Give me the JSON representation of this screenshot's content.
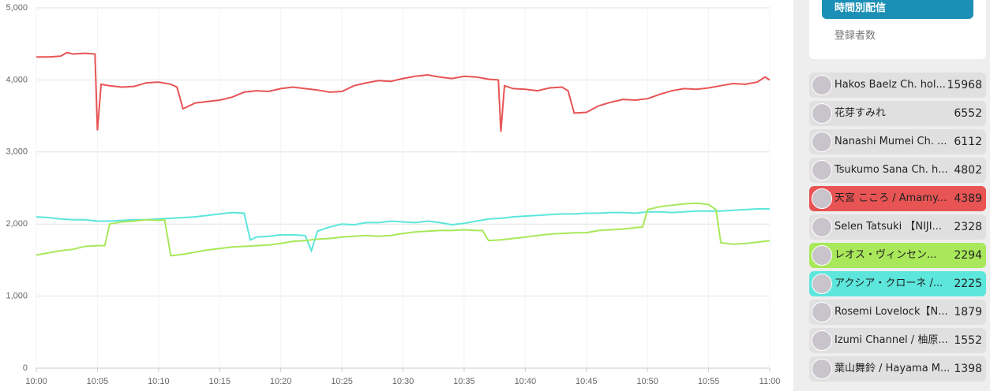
{
  "chart_data": {
    "type": "line",
    "xlim": [
      0,
      60
    ],
    "xticks": [
      {
        "value": 0,
        "label": "10:00"
      },
      {
        "value": 5,
        "label": "10:05"
      },
      {
        "value": 10,
        "label": "10:10"
      },
      {
        "value": 15,
        "label": "10:15"
      },
      {
        "value": 20,
        "label": "10:20"
      },
      {
        "value": 25,
        "label": "10:25"
      },
      {
        "value": 30,
        "label": "10:30"
      },
      {
        "value": 35,
        "label": "10:35"
      },
      {
        "value": 40,
        "label": "10:40"
      },
      {
        "value": 45,
        "label": "10:45"
      },
      {
        "value": 50,
        "label": "10:50"
      },
      {
        "value": 55,
        "label": "10:55"
      },
      {
        "value": 60,
        "label": "11:00"
      }
    ],
    "ylim": [
      0,
      5000
    ],
    "yticks": [
      0,
      {
        "value": 1000,
        "label": "1,000"
      },
      {
        "value": 2000,
        "label": "2,000"
      },
      {
        "value": 3000,
        "label": "3,000"
      },
      {
        "value": 4000,
        "label": "4,000"
      },
      {
        "value": 5000,
        "label": "5,000"
      }
    ],
    "grid": true,
    "series": [
      {
        "color": "#e85454",
        "x": [
          0,
          1,
          2,
          2.5,
          3,
          4,
          4.8,
          5,
          5.3,
          6,
          7,
          8,
          9,
          10,
          11,
          11.5,
          12,
          13,
          14,
          15,
          16,
          17,
          18,
          19,
          20,
          21,
          22,
          23,
          24,
          25,
          26,
          27,
          28,
          29,
          30,
          31,
          32,
          33,
          34,
          35,
          36,
          37,
          37.8,
          38,
          38.3,
          39,
          40,
          41,
          42,
          43,
          43.5,
          44,
          45,
          46,
          47,
          48,
          49,
          50,
          51,
          52,
          53,
          54,
          55,
          56,
          57,
          58,
          59,
          59.6,
          60
        ],
        "values": [
          4320,
          4320,
          4330,
          4380,
          4360,
          4370,
          4360,
          3300,
          3940,
          3920,
          3900,
          3910,
          3960,
          3970,
          3940,
          3900,
          3600,
          3680,
          3700,
          3720,
          3760,
          3830,
          3850,
          3840,
          3880,
          3900,
          3880,
          3860,
          3830,
          3840,
          3920,
          3960,
          3990,
          3980,
          4020,
          4050,
          4070,
          4040,
          4020,
          4050,
          4040,
          4010,
          4000,
          3280,
          3920,
          3880,
          3870,
          3850,
          3890,
          3900,
          3850,
          3540,
          3550,
          3640,
          3690,
          3730,
          3720,
          3740,
          3800,
          3850,
          3880,
          3870,
          3890,
          3920,
          3950,
          3940,
          3970,
          4040,
          4000
        ]
      },
      {
        "color": "#5ce6dc",
        "x": [
          0,
          1,
          2,
          3,
          4,
          5,
          6,
          7,
          8,
          9,
          10,
          11,
          12,
          13,
          14,
          15,
          16,
          17,
          17.5,
          18,
          19,
          20,
          21,
          22,
          22.5,
          23,
          24,
          25,
          26,
          27,
          28,
          29,
          30,
          31,
          32,
          33,
          34,
          35,
          36,
          37,
          38,
          39,
          40,
          41,
          42,
          43,
          44,
          45,
          46,
          47,
          48,
          49,
          50,
          51,
          52,
          53,
          54,
          55,
          56,
          57,
          58,
          59,
          60
        ],
        "values": [
          2100,
          2090,
          2070,
          2060,
          2060,
          2040,
          2040,
          2050,
          2060,
          2060,
          2070,
          2080,
          2090,
          2100,
          2120,
          2140,
          2160,
          2150,
          1780,
          1820,
          1830,
          1850,
          1850,
          1840,
          1630,
          1900,
          1960,
          2000,
          1990,
          2020,
          2020,
          2040,
          2030,
          2020,
          2040,
          2020,
          1990,
          2010,
          2040,
          2070,
          2080,
          2100,
          2110,
          2120,
          2130,
          2140,
          2140,
          2150,
          2150,
          2160,
          2160,
          2150,
          2170,
          2170,
          2160,
          2170,
          2180,
          2180,
          2180,
          2190,
          2200,
          2210,
          2210
        ]
      },
      {
        "color": "#a8e85a",
        "x": [
          0,
          1,
          2,
          3,
          4,
          5,
          5.6,
          6,
          7,
          8,
          9,
          10,
          10.5,
          11,
          12,
          13,
          14,
          15,
          16,
          17,
          18,
          19,
          20,
          21,
          22,
          23,
          24,
          25,
          26,
          27,
          28,
          29,
          30,
          31,
          32,
          33,
          34,
          35,
          36,
          36.5,
          37,
          38,
          39,
          40,
          41,
          42,
          43,
          44,
          45,
          46,
          47,
          48,
          49,
          49.6,
          50,
          51,
          52,
          53,
          54,
          55,
          55.6,
          56,
          57,
          58,
          59,
          60
        ],
        "values": [
          1570,
          1600,
          1630,
          1650,
          1690,
          1700,
          1700,
          2000,
          2030,
          2040,
          2060,
          2050,
          2060,
          1560,
          1580,
          1610,
          1640,
          1660,
          1680,
          1690,
          1700,
          1710,
          1730,
          1760,
          1770,
          1790,
          1800,
          1820,
          1830,
          1840,
          1830,
          1840,
          1870,
          1890,
          1900,
          1910,
          1910,
          1920,
          1910,
          1910,
          1770,
          1780,
          1800,
          1820,
          1840,
          1860,
          1870,
          1880,
          1880,
          1910,
          1920,
          1930,
          1950,
          1960,
          2200,
          2240,
          2260,
          2280,
          2290,
          2270,
          2200,
          1740,
          1720,
          1730,
          1750,
          1770
        ]
      }
    ]
  },
  "menu": {
    "active": "時間別配信",
    "other": "登録者数"
  },
  "ranking": [
    {
      "name": "Hakos Baelz Ch. hol...",
      "count": 15968
    },
    {
      "name": "花芽すみれ",
      "count": 6552
    },
    {
      "name": "Nanashi Mumei Ch. ...",
      "count": 6112
    },
    {
      "name": "Tsukumo Sana Ch. h...",
      "count": 4802
    },
    {
      "name": "天宮 こころ / Amamy...",
      "count": 4389,
      "color": "#e85454"
    },
    {
      "name": "Selen Tatsuki 【NIJI...",
      "count": 2328
    },
    {
      "name": "レオス・ヴィンセン...",
      "count": 2294,
      "color": "#a8e85a"
    },
    {
      "name": "アクシア・クローネ /...",
      "count": 2225,
      "color": "#5ce6dc"
    },
    {
      "name": "Rosemi Lovelock【N...",
      "count": 1879
    },
    {
      "name": "Izumi Channel / 柚原...",
      "count": 1552
    },
    {
      "name": "葉山舞鈴 / Hayama M...",
      "count": 1398
    }
  ]
}
